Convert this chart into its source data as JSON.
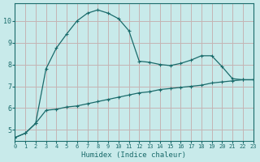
{
  "xlabel": "Humidex (Indice chaleur)",
  "background_color": "#c8eaea",
  "grid_color": "#c4b4b4",
  "line_color": "#1a6b6b",
  "xlim": [
    0,
    23
  ],
  "ylim": [
    4.5,
    10.8
  ],
  "yticks": [
    5,
    6,
    7,
    8,
    9,
    10
  ],
  "xticks": [
    0,
    1,
    2,
    3,
    4,
    5,
    6,
    7,
    8,
    9,
    10,
    11,
    12,
    13,
    14,
    15,
    16,
    17,
    18,
    19,
    20,
    21,
    22,
    23
  ],
  "series1_x": [
    0,
    1,
    2,
    3,
    4,
    5,
    6,
    7,
    8,
    9,
    10,
    11,
    12,
    13,
    14,
    15,
    16,
    17,
    18,
    19,
    20,
    21,
    22,
    23
  ],
  "series1_y": [
    4.65,
    4.85,
    5.3,
    7.8,
    8.75,
    9.4,
    10.0,
    10.35,
    10.5,
    10.35,
    10.1,
    9.55,
    8.15,
    8.1,
    8.0,
    7.95,
    8.05,
    8.2,
    8.4,
    8.4,
    7.9,
    7.35,
    7.3,
    7.3
  ],
  "series2_x": [
    0,
    1,
    2,
    3,
    4,
    5,
    6,
    7,
    8,
    9,
    10,
    11,
    12,
    13,
    14,
    15,
    16,
    17,
    18,
    19,
    20,
    21,
    22,
    23
  ],
  "series2_y": [
    4.65,
    4.85,
    5.3,
    5.9,
    5.95,
    6.05,
    6.1,
    6.2,
    6.3,
    6.4,
    6.5,
    6.6,
    6.7,
    6.75,
    6.85,
    6.9,
    6.95,
    7.0,
    7.05,
    7.15,
    7.2,
    7.25,
    7.3,
    7.3
  ]
}
